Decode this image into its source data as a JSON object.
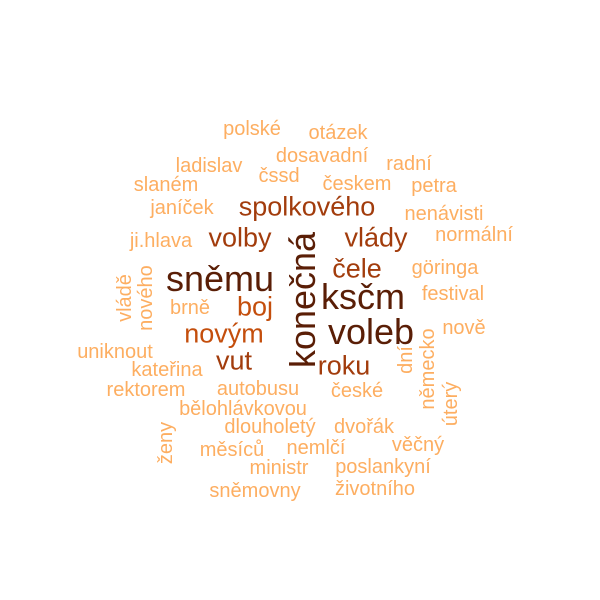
{
  "words": [
    {
      "text": "polské",
      "tone": 1
    },
    {
      "text": "otázek",
      "tone": 1
    },
    {
      "text": "ladislav",
      "tone": 1
    },
    {
      "text": "dosavadní",
      "tone": 1
    },
    {
      "text": "radní",
      "tone": 1
    },
    {
      "text": "slaném",
      "tone": 1
    },
    {
      "text": "čssd",
      "tone": 1
    },
    {
      "text": "českem",
      "tone": 1
    },
    {
      "text": "petra",
      "tone": 1
    },
    {
      "text": "janíček",
      "tone": 1
    },
    {
      "text": "spolkového",
      "tone": 5
    },
    {
      "text": "nenávisti",
      "tone": 1
    },
    {
      "text": "ji.hlava",
      "tone": 1
    },
    {
      "text": "volby",
      "tone": 5
    },
    {
      "text": "konečná",
      "tone": 7
    },
    {
      "text": "vlády",
      "tone": 5
    },
    {
      "text": "normální",
      "tone": 1
    },
    {
      "text": "sněmu",
      "tone": 7
    },
    {
      "text": "čele",
      "tone": 5
    },
    {
      "text": "göringa",
      "tone": 1
    },
    {
      "text": "vládě",
      "tone": 1
    },
    {
      "text": "nového",
      "tone": 1
    },
    {
      "text": "ksčm",
      "tone": 7
    },
    {
      "text": "festival",
      "tone": 1
    },
    {
      "text": "brně",
      "tone": 1
    },
    {
      "text": "boj",
      "tone": 4
    },
    {
      "text": "voleb",
      "tone": 7
    },
    {
      "text": "nově",
      "tone": 1
    },
    {
      "text": "novým",
      "tone": 4
    },
    {
      "text": "uniknout",
      "tone": 1
    },
    {
      "text": "vut",
      "tone": 5
    },
    {
      "text": "roku",
      "tone": 5
    },
    {
      "text": "dní",
      "tone": 1
    },
    {
      "text": "německo",
      "tone": 1
    },
    {
      "text": "kateřina",
      "tone": 1
    },
    {
      "text": "rektorem",
      "tone": 1
    },
    {
      "text": "autobusu",
      "tone": 1
    },
    {
      "text": "české",
      "tone": 1
    },
    {
      "text": "úterý",
      "tone": 1
    },
    {
      "text": "bělohlávkovou",
      "tone": 1
    },
    {
      "text": "ženy",
      "tone": 1
    },
    {
      "text": "dlouholetý",
      "tone": 1
    },
    {
      "text": "dvořák",
      "tone": 1
    },
    {
      "text": "věčný",
      "tone": 1
    },
    {
      "text": "měsíců",
      "tone": 1
    },
    {
      "text": "nemlčí",
      "tone": 1
    },
    {
      "text": "ministr",
      "tone": 1
    },
    {
      "text": "poslankyní",
      "tone": 1
    },
    {
      "text": "sněmovny",
      "tone": 1
    },
    {
      "text": "životního",
      "tone": 1
    }
  ]
}
